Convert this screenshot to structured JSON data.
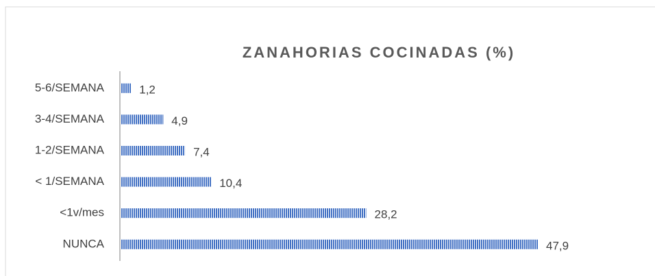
{
  "chart_data": {
    "type": "bar",
    "orientation": "horizontal",
    "title": "ZANAHORIAS COCINADAS (%)",
    "categories": [
      "5-6/SEMANA",
      "3-4/SEMANA",
      "1-2/SEMANA",
      "< 1/SEMANA",
      "<1v/mes",
      "NUNCA"
    ],
    "values": [
      1.2,
      4.9,
      7.4,
      10.4,
      28.2,
      47.9
    ],
    "value_labels": [
      "1,2",
      "4,9",
      "7,4",
      "10,4",
      "28,2",
      "47,9"
    ],
    "color": "#4472c4"
  }
}
